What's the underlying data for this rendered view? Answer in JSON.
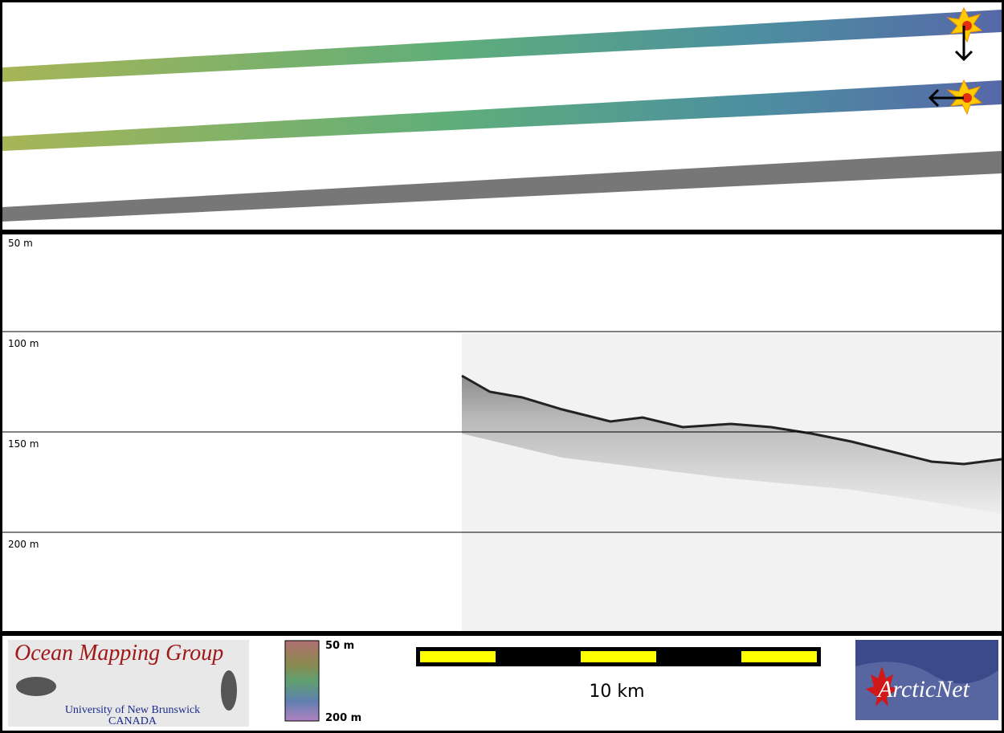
{
  "profile": {
    "depth_labels": [
      "50 m",
      "100 m",
      "150 m",
      "200 m"
    ]
  },
  "footer": {
    "logo": {
      "title": "Ocean Mapping Group",
      "institution": "University of New Brunswick",
      "country": "CANADA"
    },
    "colorbar": {
      "top_label": "50 m",
      "bottom_label": "200 m"
    },
    "scale_bar": {
      "label": "10 km"
    },
    "partner_logo": {
      "text": "ArcticNet"
    }
  }
}
